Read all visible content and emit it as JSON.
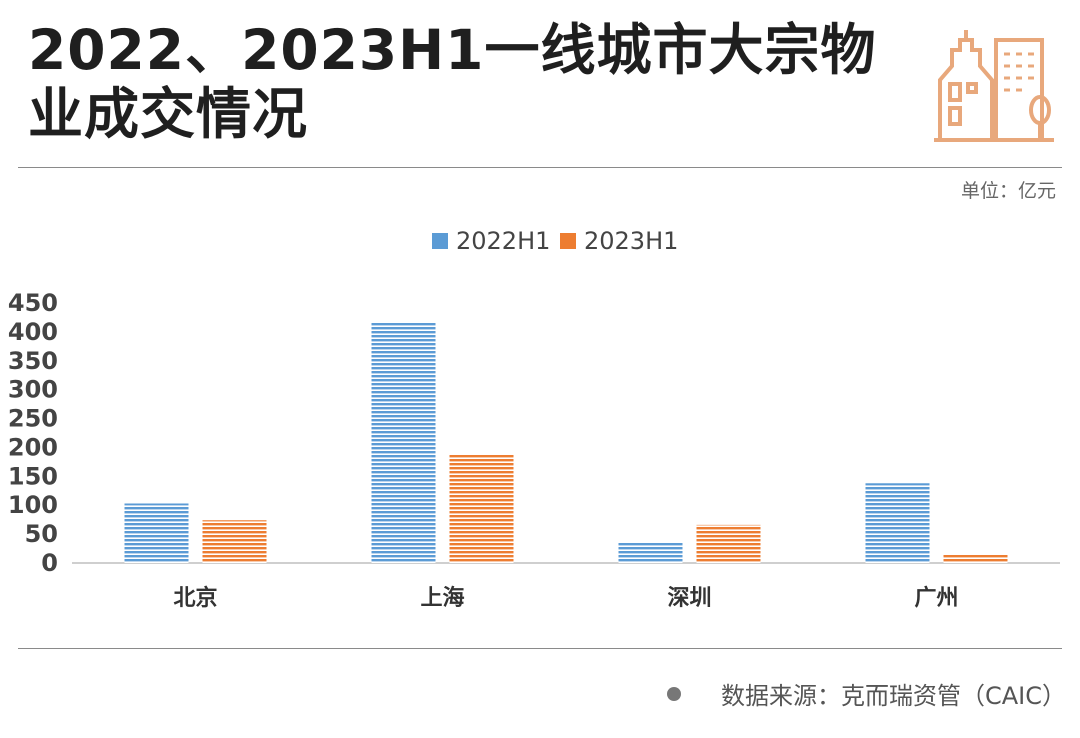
{
  "header": {
    "title_line1": "2022、2023H1一线城市大宗物",
    "title_line2": "业成交情况",
    "unit": "单位：亿元"
  },
  "footer": {
    "source": "数据来源：克而瑞资管（CAIC）"
  },
  "colors": {
    "series_2022": "#5b9bd5",
    "series_2023": "#ed7d31",
    "logo": "#e8a87c"
  },
  "chart_data": {
    "type": "bar",
    "categories": [
      "北京",
      "上海",
      "深圳",
      "广州"
    ],
    "series": [
      {
        "name": "2022H1",
        "values": [
          103,
          418,
          37,
          138
        ]
      },
      {
        "name": "2023H1",
        "values": [
          74,
          189,
          66,
          15
        ]
      }
    ],
    "yticks": [
      0,
      50,
      100,
      150,
      200,
      250,
      300,
      350,
      400,
      450
    ],
    "ylim": [
      0,
      450
    ],
    "legend_position": "top-center",
    "grid": false
  }
}
